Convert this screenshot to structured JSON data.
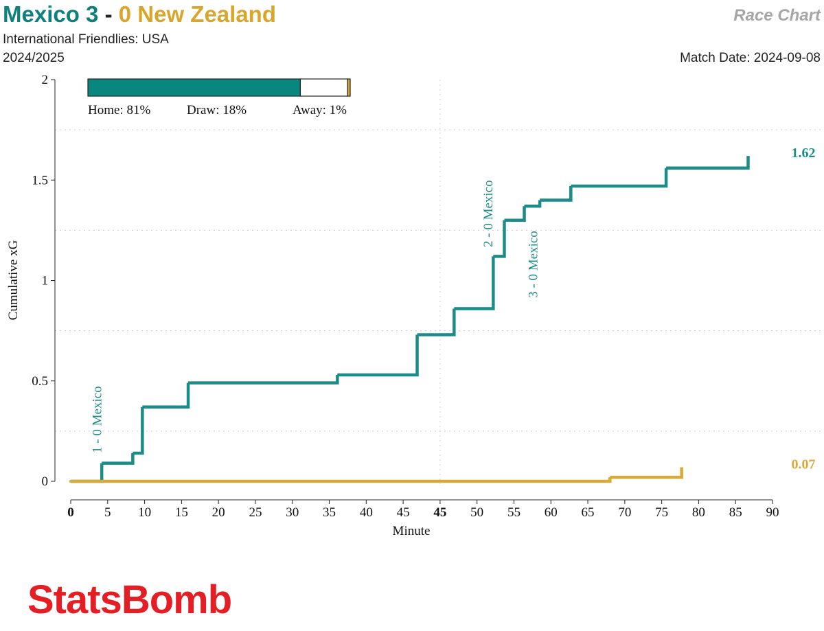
{
  "header": {
    "title_home": "Mexico 3",
    "title_sep": "-",
    "title_away": "0 New Zealand",
    "chart_kind": "Race Chart",
    "competition": "International Friendlies: USA",
    "season": "2024/2025",
    "match_date": "Match Date: 2024-09-08",
    "logo": "StatsBomb"
  },
  "probabilities": [
    {
      "label": "Home:",
      "value": 81,
      "value_label": "81%",
      "color": "#0a8680"
    },
    {
      "label": "Draw:",
      "value": 18,
      "value_label": "18%",
      "color": "#ffffff"
    },
    {
      "label": "Away:",
      "value": 1,
      "value_label": "1%",
      "color": "#d9a52a"
    }
  ],
  "chart_data": {
    "type": "step",
    "xlabel": "Minute",
    "ylabel": "Cumulative xG",
    "xlim": [
      0,
      95
    ],
    "ylim": [
      0,
      2
    ],
    "xticks": [
      0,
      5,
      10,
      15,
      20,
      25,
      30,
      35,
      40,
      45,
      {
        "value": 50,
        "label": "45"
      },
      {
        "value": 55,
        "label": "50"
      },
      {
        "value": 60,
        "label": "55"
      },
      {
        "value": 65,
        "label": "60"
      },
      {
        "value": 70,
        "label": "65"
      },
      {
        "value": 75,
        "label": "70"
      },
      {
        "value": 80,
        "label": "75"
      },
      {
        "value": 85,
        "label": "80"
      },
      {
        "value": 90,
        "label": "85"
      },
      {
        "value": 95,
        "label": "90"
      }
    ],
    "yticks": [
      0,
      0.5,
      1,
      1.5,
      2
    ],
    "ygrid": [
      0.25,
      0.75,
      1.25,
      1.75
    ],
    "halftime": 50,
    "series": [
      {
        "name": "Mexico",
        "color": "#1b8c88",
        "x": [
          0,
          4.2,
          8.4,
          9.7,
          15.9,
          36.1,
          46.9,
          51.9,
          57.2,
          58.7,
          61.4,
          63.5,
          67.7,
          80.6,
          91.7
        ],
        "values": [
          0,
          0.09,
          0.14,
          0.37,
          0.49,
          0.53,
          0.73,
          0.86,
          1.12,
          1.3,
          1.37,
          1.4,
          1.47,
          1.56,
          1.62
        ]
      },
      {
        "name": "New Zealand",
        "color": "#d9aa35",
        "x": [
          0,
          73.0,
          82.7
        ],
        "values": [
          0,
          0.02,
          0.07
        ]
      }
    ],
    "annotations": [
      {
        "x": 3.6,
        "text": "1 - 0 Mexico"
      },
      {
        "x": 56.5,
        "text": "2 - 0 Mexico"
      },
      {
        "x": 62.6,
        "text": "3 - 0 Mexico"
      }
    ]
  }
}
